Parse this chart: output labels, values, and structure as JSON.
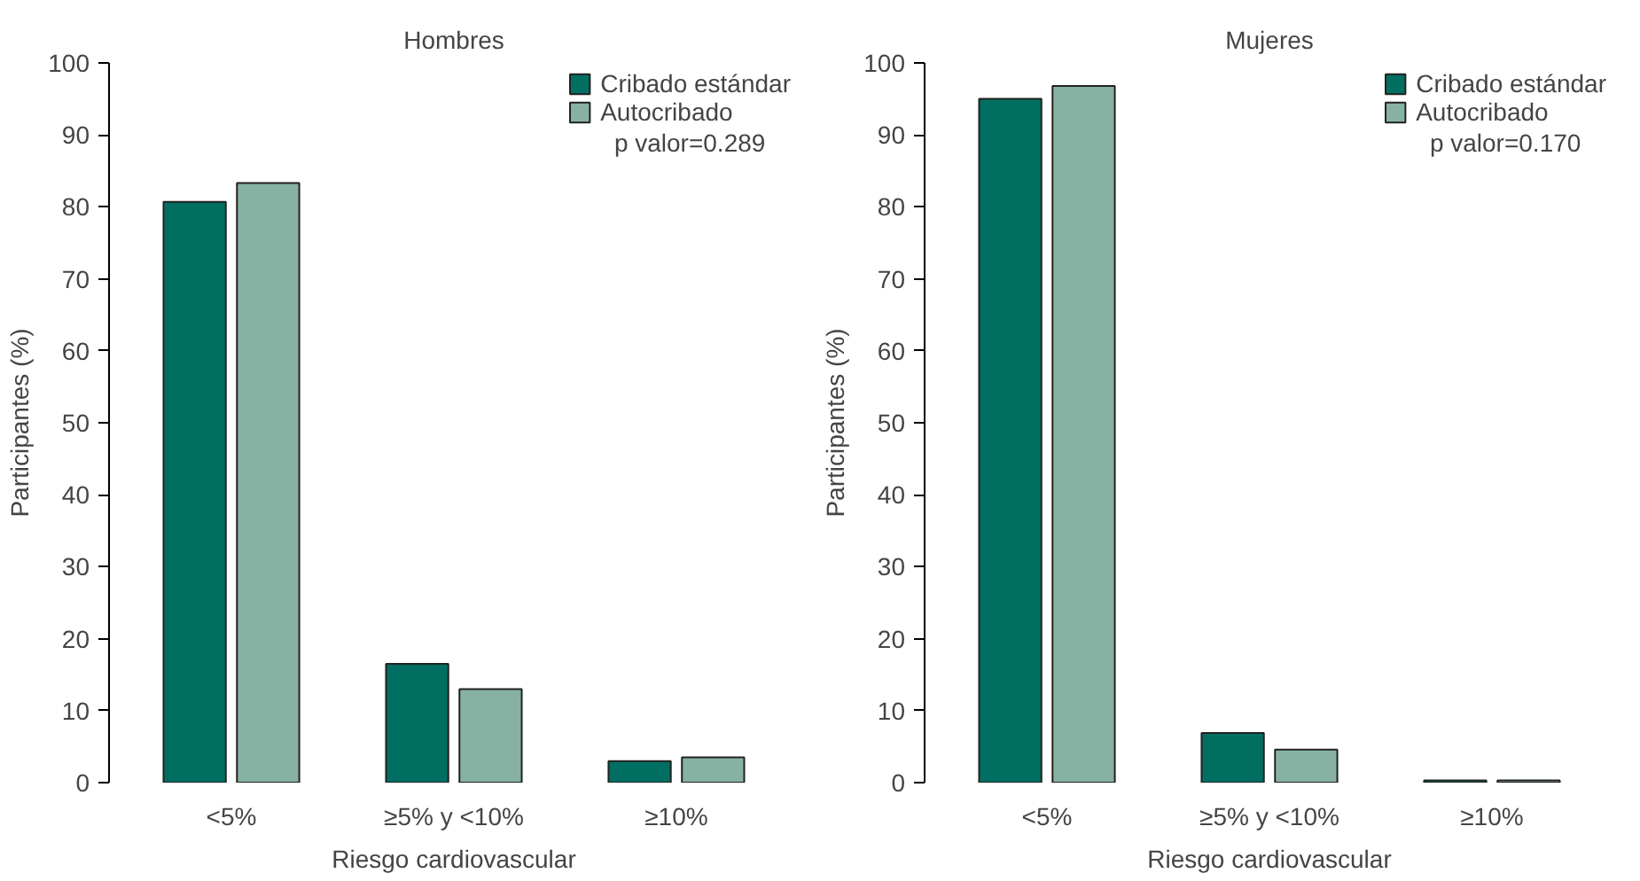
{
  "chart_data": [
    {
      "type": "bar",
      "title": "Hombres",
      "xlabel": "Riesgo cardiovascular",
      "ylabel": "Participantes (%)",
      "categories": [
        "<5%",
        "≥5% y <10%",
        "≥10%"
      ],
      "series": [
        {
          "name": "Cribado estándar",
          "color": "#006f62",
          "values": [
            80.7,
            16.5,
            3.0
          ]
        },
        {
          "name": "Autocribado",
          "color": "#87b2a3",
          "values": [
            83.3,
            13.0,
            3.5
          ]
        }
      ],
      "ylim": [
        0,
        100
      ],
      "yticks": [
        0,
        10,
        20,
        30,
        40,
        50,
        60,
        70,
        80,
        90,
        100
      ],
      "grid": false,
      "legend": "top right",
      "annotations": [
        "p valor=0.289"
      ]
    },
    {
      "type": "bar",
      "title": "Mujeres",
      "xlabel": "Riesgo cardiovascular",
      "ylabel": "Participantes (%)",
      "categories": [
        "<5%",
        "≥5% y <10%",
        "≥10%"
      ],
      "series": [
        {
          "name": "Cribado estándar",
          "color": "#006f62",
          "values": [
            95.0,
            6.9,
            0.3
          ]
        },
        {
          "name": "Autocribado",
          "color": "#87b2a3",
          "values": [
            96.8,
            4.6,
            0.3
          ]
        }
      ],
      "ylim": [
        0,
        100
      ],
      "yticks": [
        0,
        10,
        20,
        30,
        40,
        50,
        60,
        70,
        80,
        90,
        100
      ],
      "grid": false,
      "legend": "top right",
      "annotations": [
        "p valor=0.170"
      ]
    }
  ]
}
